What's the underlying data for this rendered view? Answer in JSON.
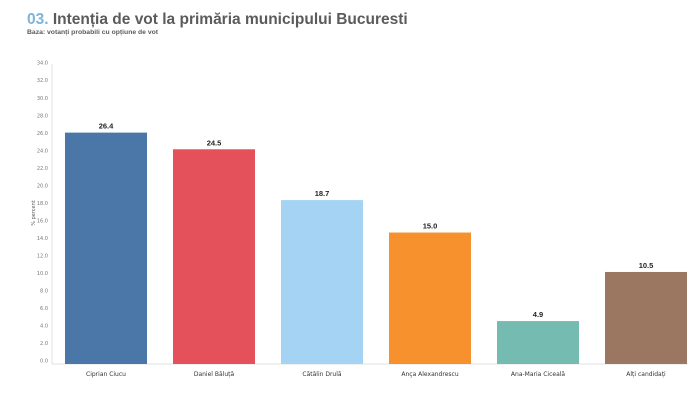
{
  "header": {
    "number": "03.",
    "title": "Intenția de vot la primăria municipului Bucuresti",
    "subtitle": "Baza: votanți probabili cu opțiune de vot"
  },
  "chart_data": {
    "type": "bar",
    "title": "Intenția de vot la primăria municipului Bucuresti",
    "subtitle": "Baza: votanți probabili cu opțiune de vot",
    "xlabel": "",
    "ylabel": "% percent",
    "ylim": [
      0,
      34
    ],
    "yticks": [
      "0.0",
      "2.0",
      "4.0",
      "6.0",
      "8.0",
      "10.0",
      "12.0",
      "14.0",
      "16.0",
      "18.0",
      "20.0",
      "22.0",
      "24.0",
      "26.0",
      "28.0",
      "30.0",
      "32.0",
      "34.0"
    ],
    "grid": false,
    "categories": [
      "Ciprian Ciucu",
      "Daniel Băluță",
      "Cătălin Drulă",
      "Ança Alexandrescu",
      "Ana-Maria Ciceală",
      "Alți candidați"
    ],
    "values": [
      26.4,
      24.5,
      18.7,
      15.0,
      4.9,
      10.5
    ],
    "value_labels": [
      "26.4",
      "24.5",
      "18.7",
      "15.0",
      "4.9",
      "10.5"
    ],
    "colors": [
      "#4a76a8",
      "#e5515a",
      "#a5d3f3",
      "#f7912d",
      "#76bbb2",
      "#9b7661"
    ]
  }
}
